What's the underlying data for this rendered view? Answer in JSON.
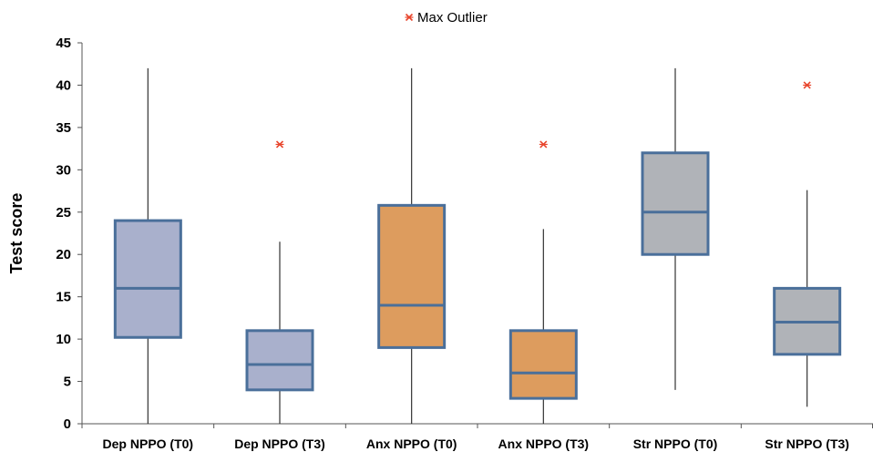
{
  "chart_data": {
    "type": "boxplot",
    "title": "",
    "xlabel": "",
    "ylabel": "Test score",
    "ylim": [
      0,
      45
    ],
    "yticks": [
      0,
      5,
      10,
      15,
      20,
      25,
      30,
      35,
      40,
      45
    ],
    "grid": false,
    "legend": {
      "position": "top-center",
      "entries": [
        {
          "label": "Max Outlier",
          "marker": "x",
          "color": "#e8452c"
        }
      ]
    },
    "categories": [
      "Dep NPPO (T0)",
      "Dep NPPO (T3)",
      "Anx NPPO (T0)",
      "Anx NPPO (T3)",
      "Str NPPO (T0)",
      "Str NPPO (T3)"
    ],
    "boxes": [
      {
        "category": "Dep NPPO (T0)",
        "min": 0,
        "q1": 10.2,
        "median": 16,
        "q3": 24,
        "max": 42,
        "outlier": null,
        "fill": "#a9b0cc"
      },
      {
        "category": "Dep NPPO (T3)",
        "min": 0,
        "q1": 4,
        "median": 7,
        "q3": 11,
        "max": 21.5,
        "outlier": 33,
        "fill": "#a9b0cc"
      },
      {
        "category": "Anx NPPO (T0)",
        "min": 0,
        "q1": 9,
        "median": 14,
        "q3": 25.8,
        "max": 42,
        "outlier": null,
        "fill": "#dd9c5e"
      },
      {
        "category": "Anx NPPO (T3)",
        "min": 0,
        "q1": 3,
        "median": 6,
        "q3": 11,
        "max": 23,
        "outlier": 33,
        "fill": "#dd9c5e"
      },
      {
        "category": "Str NPPO (T0)",
        "min": 4,
        "q1": 20,
        "median": 25,
        "q3": 32,
        "max": 42,
        "outlier": null,
        "fill": "#b0b3b8"
      },
      {
        "category": "Str NPPO (T3)",
        "min": 2,
        "q1": 8.2,
        "median": 12,
        "q3": 16,
        "max": 27.6,
        "outlier": 40,
        "fill": "#b0b3b8"
      }
    ],
    "box_stroke": "#4a6f9a",
    "whisker_color": "#333333",
    "axis_color": "#555555"
  }
}
